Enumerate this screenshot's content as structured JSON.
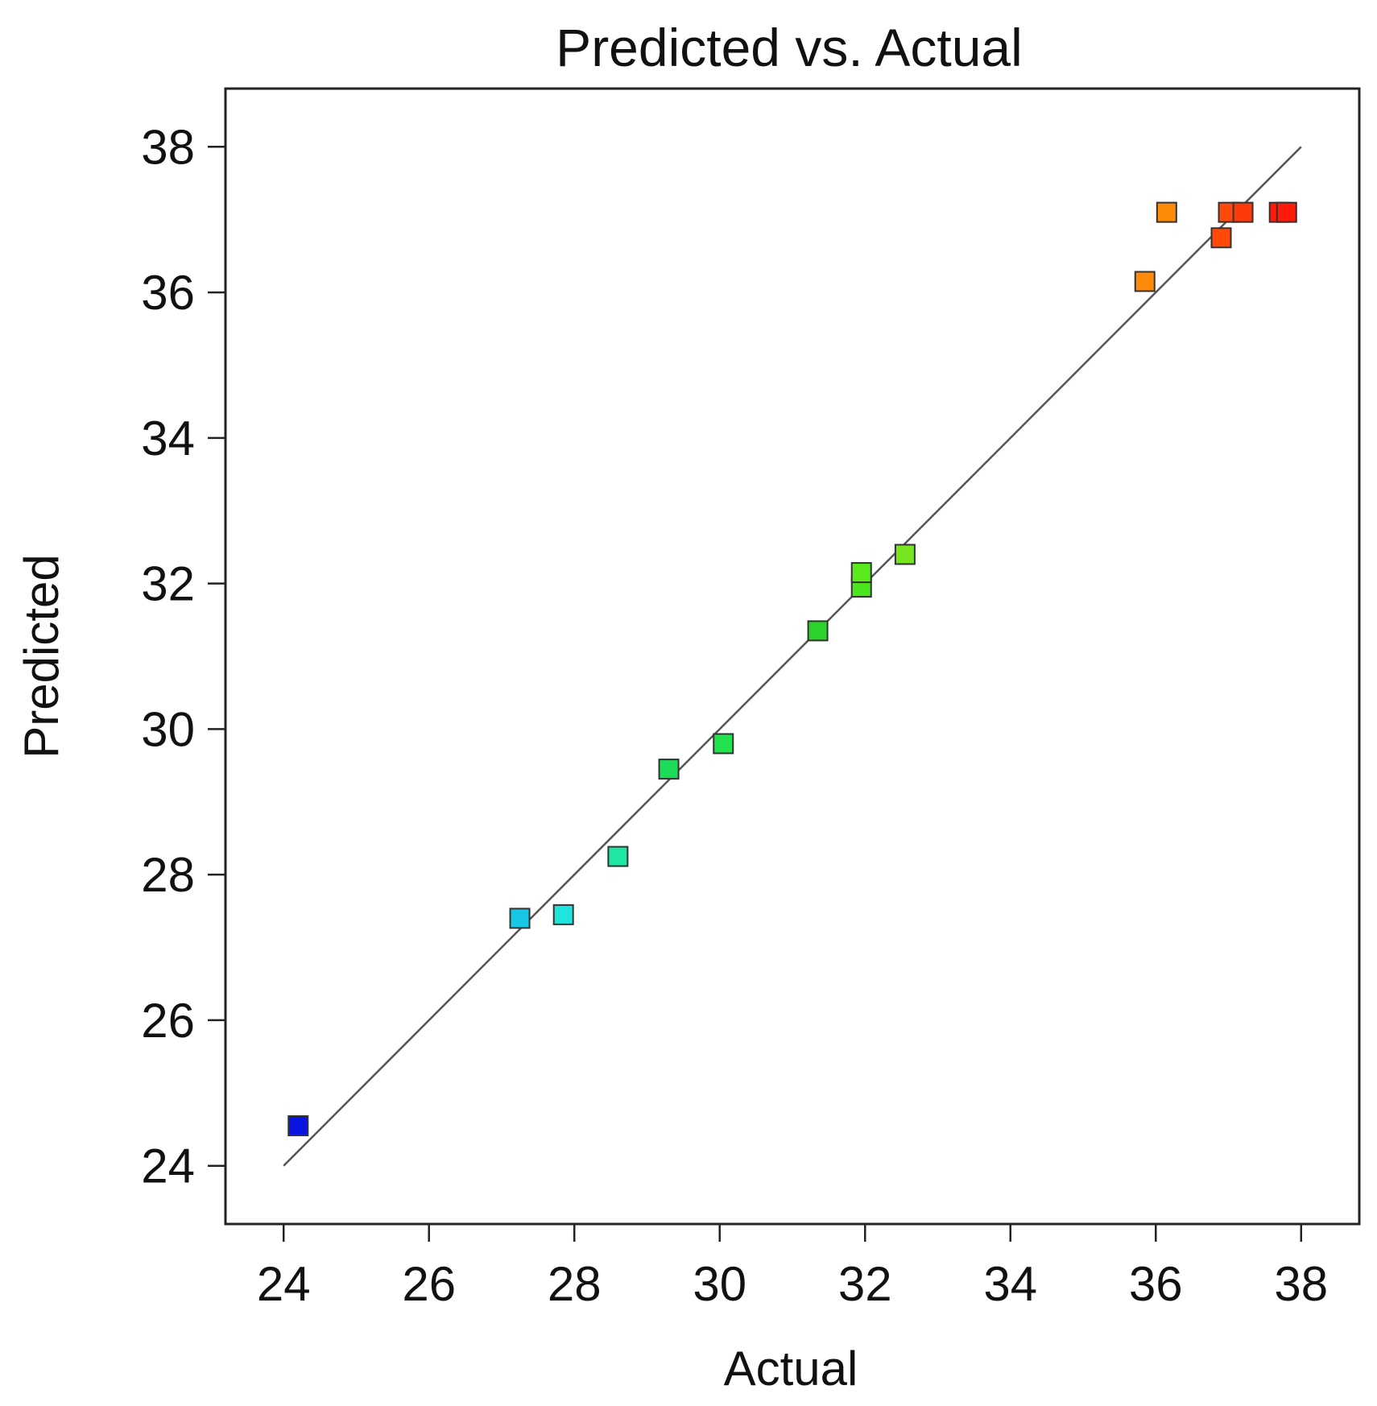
{
  "chart_data": {
    "type": "scatter",
    "title": "Predicted vs. Actual",
    "xlabel": "Actual",
    "ylabel": "Predicted",
    "xlim": [
      23.2,
      38.8
    ],
    "ylim": [
      23.2,
      38.8
    ],
    "xticks": [
      24,
      26,
      28,
      30,
      32,
      34,
      36,
      38
    ],
    "yticks": [
      24,
      26,
      28,
      30,
      32,
      34,
      36,
      38
    ],
    "reference_line": {
      "from": [
        24,
        24
      ],
      "to": [
        38,
        38
      ]
    },
    "marker": "square",
    "grid": false,
    "points": [
      {
        "x": 24.2,
        "y": 24.55,
        "color": "#0a14e0"
      },
      {
        "x": 27.25,
        "y": 27.4,
        "color": "#17c8e6"
      },
      {
        "x": 27.85,
        "y": 27.45,
        "color": "#1ee6dc"
      },
      {
        "x": 28.6,
        "y": 28.25,
        "color": "#1ee6a4"
      },
      {
        "x": 29.3,
        "y": 29.45,
        "color": "#1edc5a"
      },
      {
        "x": 30.05,
        "y": 29.8,
        "color": "#22e24e"
      },
      {
        "x": 31.35,
        "y": 31.35,
        "color": "#2ad22a"
      },
      {
        "x": 31.95,
        "y": 31.95,
        "color": "#4ae51c"
      },
      {
        "x": 31.95,
        "y": 32.15,
        "color": "#5aea1e"
      },
      {
        "x": 32.55,
        "y": 32.4,
        "color": "#78e61e"
      },
      {
        "x": 35.85,
        "y": 36.15,
        "color": "#ff8a0a"
      },
      {
        "x": 36.15,
        "y": 37.1,
        "color": "#ff8a0a"
      },
      {
        "x": 36.9,
        "y": 36.75,
        "color": "#ff4a0a"
      },
      {
        "x": 37.0,
        "y": 37.1,
        "color": "#ff4a0a"
      },
      {
        "x": 37.2,
        "y": 37.1,
        "color": "#ff3a0a"
      },
      {
        "x": 37.7,
        "y": 37.1,
        "color": "#ff1a0a"
      },
      {
        "x": 37.8,
        "y": 37.1,
        "color": "#ff1a0a"
      }
    ]
  }
}
